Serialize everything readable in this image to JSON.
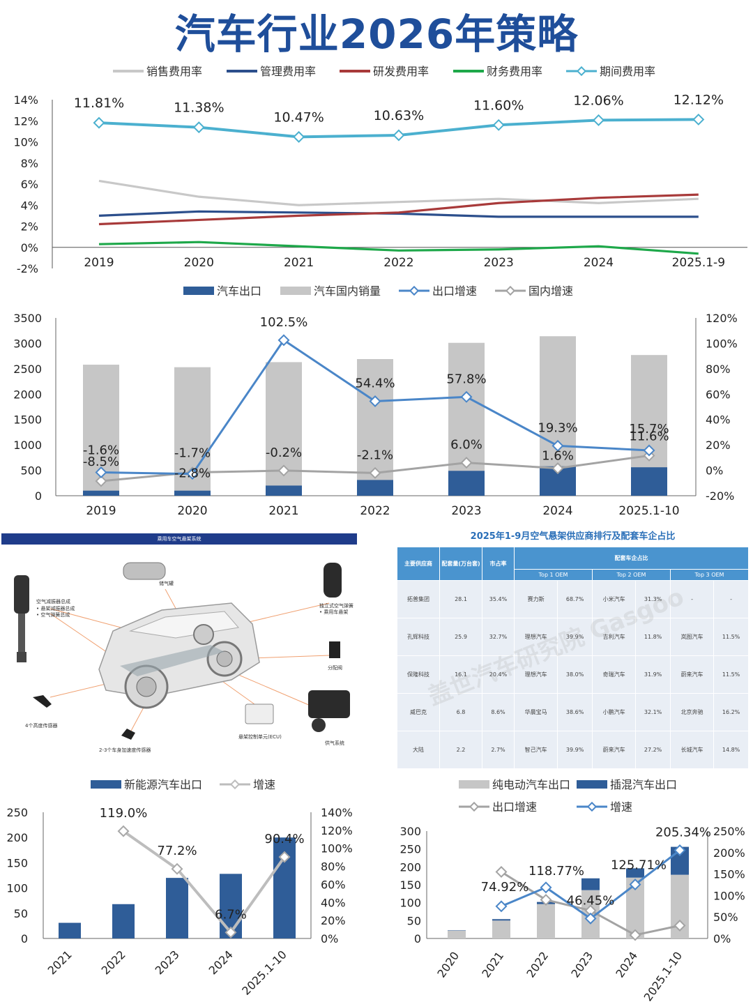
{
  "page_title": "汽车行业2026年策略",
  "chart_data": [
    {
      "id": "expense",
      "type": "line",
      "categories": [
        "2019",
        "2020",
        "2021",
        "2022",
        "2023",
        "2024",
        "2025.1-9"
      ],
      "ylim": [
        -2,
        14
      ],
      "yticks": [
        "14%",
        "12%",
        "10%",
        "8%",
        "6%",
        "4%",
        "2%",
        "0%",
        "-2%"
      ],
      "series": [
        {
          "name": "销售费用率",
          "color": "#c8c8c8",
          "values": [
            6.3,
            4.8,
            4.0,
            4.3,
            4.6,
            4.2,
            4.6
          ]
        },
        {
          "name": "管理费用率",
          "color": "#2c4f8c",
          "values": [
            3.0,
            3.4,
            3.3,
            3.2,
            2.9,
            2.9,
            2.9
          ]
        },
        {
          "name": "研发费用率",
          "color": "#a83a3a",
          "values": [
            2.2,
            2.6,
            3.0,
            3.3,
            4.2,
            4.7,
            5.0
          ]
        },
        {
          "name": "财务费用率",
          "color": "#1ea84a",
          "values": [
            0.3,
            0.5,
            0.1,
            -0.3,
            -0.2,
            0.1,
            -0.6
          ]
        },
        {
          "name": "期间费用率",
          "color": "#4bb0cf",
          "values": [
            11.81,
            11.38,
            10.47,
            10.63,
            11.6,
            12.06,
            12.12
          ]
        }
      ],
      "data_labels": [
        "11.81%",
        "11.38%",
        "10.47%",
        "10.63%",
        "11.60%",
        "12.06%",
        "12.12%"
      ]
    },
    {
      "id": "export-domestic",
      "type": "bar",
      "categories": [
        "2019",
        "2020",
        "2021",
        "2022",
        "2023",
        "2024",
        "2025.1-10"
      ],
      "ylim": [
        0,
        3500
      ],
      "y2lim": [
        -20,
        120
      ],
      "yticks": [
        "3500",
        "3000",
        "2500",
        "2000",
        "1500",
        "1000",
        "500",
        "0"
      ],
      "y2ticks": [
        "120%",
        "100%",
        "80%",
        "60%",
        "40%",
        "20%",
        "0%",
        "-20%"
      ],
      "legend": [
        "汽车出口",
        "汽车国内销量",
        "出口增速",
        "国内增速"
      ],
      "export_values": [
        100,
        100,
        200,
        310,
        490,
        580,
        560
      ],
      "domestic_values": [
        2580,
        2530,
        2630,
        2690,
        3010,
        3140,
        2770
      ],
      "export_growth": [
        -1.6,
        -2.8,
        102.5,
        54.4,
        57.8,
        19.3,
        15.7
      ],
      "domestic_growth": [
        -8.5,
        -1.7,
        -0.2,
        -2.1,
        6.0,
        1.6,
        11.6
      ],
      "export_growth_labels": [
        "-1.6%",
        "-2.8%",
        "102.5%",
        "54.4%",
        "57.8%",
        "19.3%",
        "15.7%"
      ],
      "domestic_growth_labels": [
        "-8.5%",
        "-1.7%",
        "-0.2%",
        "-2.1%",
        "6.0%",
        "1.6%",
        "11.6%"
      ]
    },
    {
      "id": "nev-export",
      "type": "bar",
      "categories": [
        "2021",
        "2022",
        "2023",
        "2024",
        "2025.1-10"
      ],
      "ylim": [
        0,
        250
      ],
      "y2lim": [
        0,
        140
      ],
      "yticks": [
        "250",
        "200",
        "150",
        "100",
        "50",
        "0"
      ],
      "y2ticks": [
        "140%",
        "120%",
        "100%",
        "80%",
        "60%",
        "40%",
        "20%",
        "0%"
      ],
      "legend": [
        "新能源汽车出口",
        "增速"
      ],
      "values": [
        31,
        68,
        120,
        128,
        200
      ],
      "growth": [
        null,
        119.0,
        77.2,
        6.7,
        90.4
      ],
      "growth_labels": [
        "",
        "119.0%",
        "77.2%",
        "6.7%",
        "90.4%"
      ]
    },
    {
      "id": "bev-phev-export",
      "type": "bar",
      "categories": [
        "2020",
        "2021",
        "2022",
        "2023",
        "2024",
        "2025.1-10"
      ],
      "ylim": [
        0,
        300
      ],
      "y2lim": [
        0,
        250
      ],
      "yticks": [
        "300",
        "250",
        "200",
        "150",
        "100",
        "50",
        "0"
      ],
      "y2ticks": [
        "250%",
        "200%",
        "150%",
        "100%",
        "50%",
        "0%"
      ],
      "legend": [
        "纯电动汽车出口",
        "插混汽车出口",
        "出口增速",
        "增速"
      ],
      "bev_values": [
        22,
        50,
        96,
        135,
        170,
        178
      ],
      "phev_values": [
        1,
        4,
        6,
        33,
        26,
        78
      ],
      "export_growth": [
        null,
        155,
        90,
        65,
        8,
        30
      ],
      "growth": [
        null,
        74.92,
        118.77,
        46.45,
        125.71,
        205.34
      ],
      "growth_labels": [
        "",
        "74.92%",
        "118.77%",
        "46.45%",
        "125.71%",
        "205.34%"
      ]
    }
  ],
  "diagram": {
    "header": "乘用车空气悬架系统",
    "labels": [
      "储气罐",
      "空气减振器总成",
      "• 悬架减振器总成",
      "• 空气弹簧总成",
      "独立式空气弹簧",
      "• 乘用车悬架",
      "分配阀",
      "4个高度传感器",
      "2-3个车身加速度传感器",
      "悬架控制单元(ECU)",
      "供气系统"
    ]
  },
  "table": {
    "title": "2025年1-9月空气悬架供应商排行及配套车企占比",
    "headers": [
      "主要供应商",
      "配套量(万台套)",
      "市占率",
      "配套车企占比"
    ],
    "sub_headers": [
      "Top 1 OEM",
      "Top 2 OEM",
      "Top 3 OEM"
    ],
    "rows": [
      [
        "拓普集团",
        "28.1",
        "35.4%",
        "赛力斯",
        "68.7%",
        "小米汽车",
        "31.3%",
        "-",
        "-"
      ],
      [
        "孔辉科技",
        "25.9",
        "32.7%",
        "理想汽车",
        "39.9%",
        "吉利汽车",
        "11.8%",
        "岚图汽车",
        "11.5%"
      ],
      [
        "保隆科技",
        "16.1",
        "20.4%",
        "理想汽车",
        "38.0%",
        "奇瑞汽车",
        "31.9%",
        "蔚来汽车",
        "11.5%"
      ],
      [
        "威巴克",
        "6.8",
        "8.6%",
        "华晨宝马",
        "38.6%",
        "小鹏汽车",
        "32.1%",
        "北京奔驰",
        "16.2%"
      ],
      [
        "大陆",
        "2.2",
        "2.7%",
        "智己汽车",
        "39.9%",
        "蔚来汽车",
        "27.2%",
        "长城汽车",
        "14.8%"
      ]
    ],
    "watermark": "盖世汽车研究院 Gasgoo"
  }
}
